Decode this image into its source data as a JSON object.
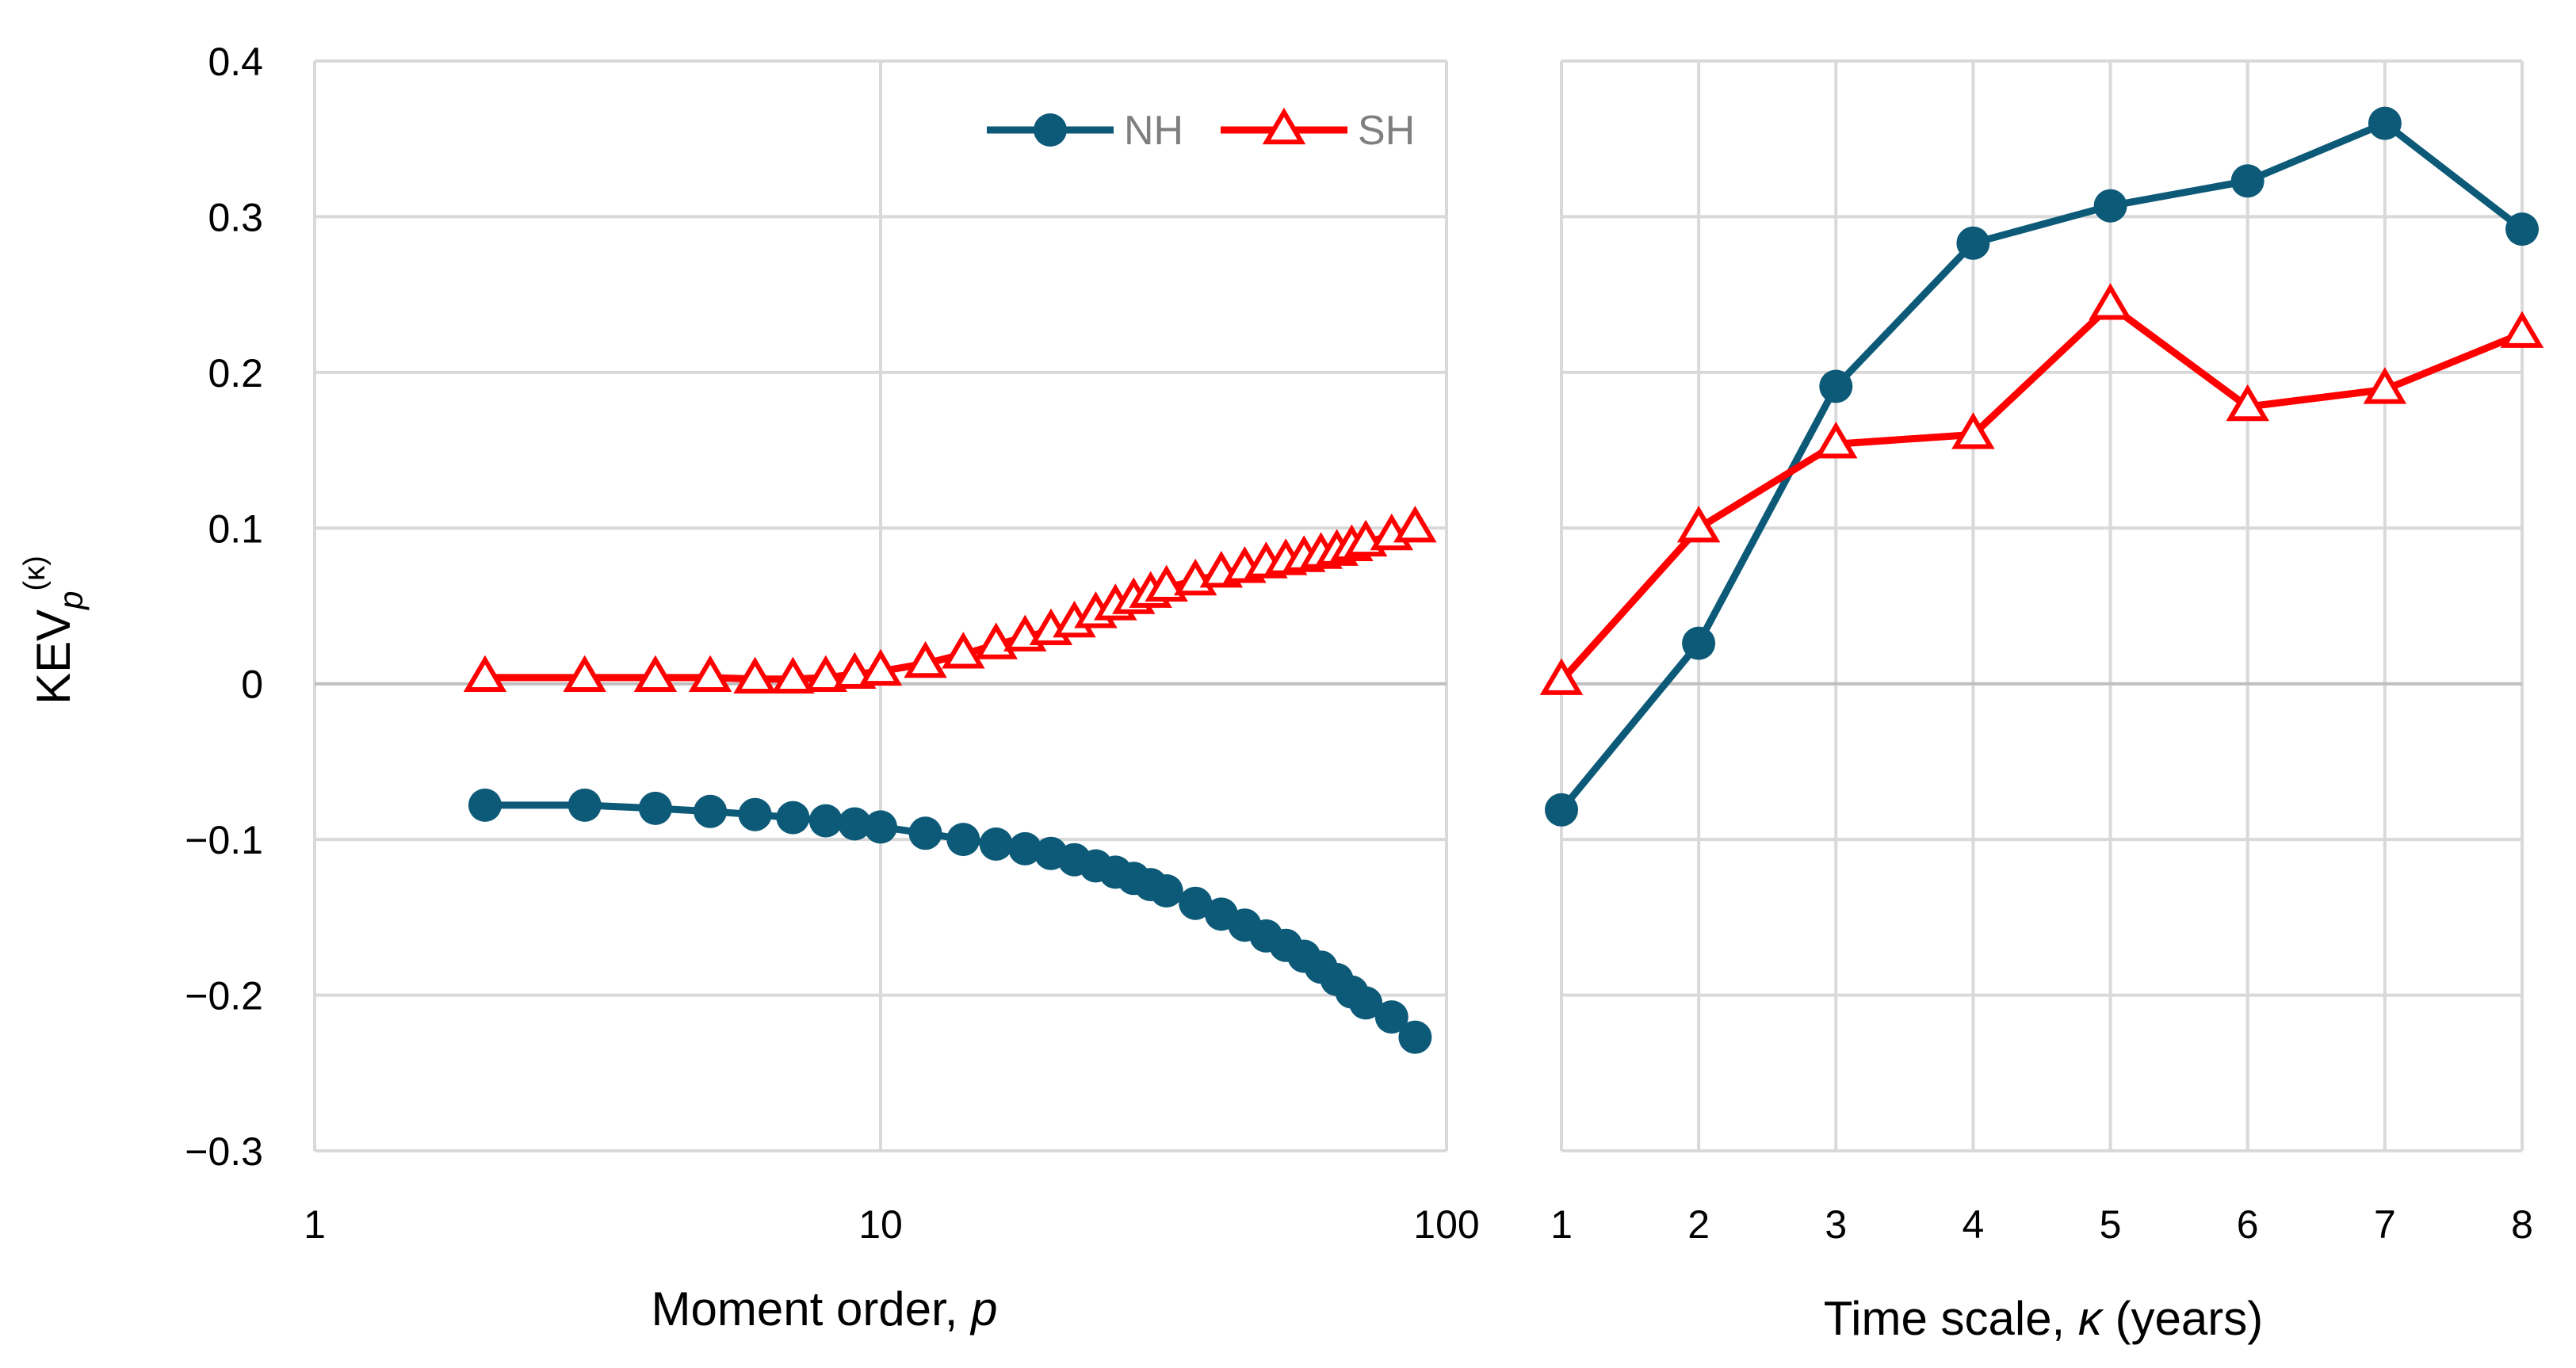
{
  "chart_data": [
    {
      "type": "line",
      "id": "left",
      "xscale": "log",
      "xlim": [
        1,
        100
      ],
      "ylim": [
        -0.3,
        0.4
      ],
      "xticks": [
        1,
        10,
        100
      ],
      "xtick_labels": [
        "1",
        "10",
        "100"
      ],
      "yticks": [
        -0.3,
        -0.2,
        -0.1,
        0,
        0.1,
        0.2,
        0.3,
        0.4
      ],
      "ytick_labels": [
        "−0.3",
        "−0.2",
        "−0.1",
        "0",
        "0.1",
        "0.2",
        "0.3",
        "0.4"
      ],
      "grid": true,
      "legend": "top-right",
      "xlabel": "Moment order, ",
      "xlabel_var": "p",
      "ylabel": "KEV",
      "ylabel_sub": "p",
      "ylabel_sup": "(κ)",
      "x": [
        2,
        3,
        4,
        5,
        6,
        7,
        8,
        9,
        10,
        12,
        14,
        16,
        18,
        20,
        22,
        24,
        26,
        28,
        30,
        32,
        36,
        40,
        44,
        48,
        52,
        56,
        60,
        64,
        68,
        72,
        80,
        88
      ],
      "series": [
        {
          "name": "NH",
          "color": "#0d5a78",
          "marker": "circle",
          "values": [
            -0.078,
            -0.078,
            -0.08,
            -0.082,
            -0.084,
            -0.086,
            -0.088,
            -0.09,
            -0.092,
            -0.096,
            -0.1,
            -0.103,
            -0.106,
            -0.109,
            -0.113,
            -0.117,
            -0.121,
            -0.125,
            -0.129,
            -0.133,
            -0.141,
            -0.148,
            -0.155,
            -0.162,
            -0.168,
            -0.175,
            -0.182,
            -0.19,
            -0.198,
            -0.205,
            -0.214,
            -0.227
          ]
        },
        {
          "name": "SH",
          "color": "#ff0000",
          "marker": "triangle",
          "values": [
            0.004,
            0.004,
            0.004,
            0.004,
            0.003,
            0.003,
            0.004,
            0.006,
            0.008,
            0.013,
            0.019,
            0.025,
            0.03,
            0.034,
            0.039,
            0.045,
            0.05,
            0.054,
            0.058,
            0.062,
            0.066,
            0.071,
            0.074,
            0.077,
            0.079,
            0.081,
            0.083,
            0.085,
            0.088,
            0.091,
            0.095,
            0.1
          ]
        }
      ]
    },
    {
      "type": "line",
      "id": "right",
      "xlim": [
        1,
        8
      ],
      "ylim": [
        -0.3,
        0.4
      ],
      "xticks": [
        1,
        2,
        3,
        4,
        5,
        6,
        7,
        8
      ],
      "xtick_labels": [
        "1",
        "2",
        "3",
        "4",
        "5",
        "6",
        "7",
        "8"
      ],
      "grid": true,
      "xlabel": "Time scale, ",
      "xlabel_var": "κ",
      "xlabel_suffix": " (years)",
      "x": [
        1,
        2,
        3,
        4,
        5,
        6,
        7,
        8
      ],
      "series": [
        {
          "name": "NH",
          "color": "#0d5a78",
          "marker": "circle",
          "values": [
            -0.081,
            0.026,
            0.191,
            0.283,
            0.307,
            0.323,
            0.36,
            0.292
          ]
        },
        {
          "name": "SH",
          "color": "#ff0000",
          "marker": "triangle",
          "values": [
            0.002,
            0.1,
            0.154,
            0.16,
            0.243,
            0.178,
            0.189,
            0.225
          ]
        }
      ]
    }
  ]
}
